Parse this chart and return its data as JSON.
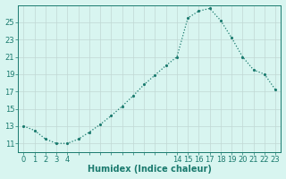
{
  "x": [
    0,
    1,
    2,
    3,
    4,
    5,
    6,
    7,
    8,
    9,
    10,
    11,
    12,
    13,
    14,
    15,
    16,
    17,
    18,
    19,
    20,
    21,
    22,
    23
  ],
  "y": [
    13.0,
    12.5,
    11.5,
    11.0,
    11.0,
    11.5,
    12.3,
    13.2,
    14.2,
    15.3,
    16.5,
    17.8,
    18.9,
    20.0,
    21.0,
    25.5,
    26.3,
    26.6,
    25.2,
    23.2,
    21.0,
    19.5,
    19.0,
    17.2
  ],
  "line_color": "#1a7a6e",
  "bg_color": "#d8f5f0",
  "grid_color": "#c0d8d4",
  "xlabel": "Humidex (Indice chaleur)",
  "ylim": [
    10,
    27
  ],
  "yticks": [
    11,
    13,
    15,
    17,
    19,
    21,
    23,
    25
  ],
  "xticks_show": [
    0,
    1,
    2,
    3,
    4,
    14,
    15,
    16,
    17,
    18,
    19,
    20,
    21,
    22,
    23
  ],
  "xlabel_fontsize": 7,
  "tick_fontsize": 6,
  "linewidth": 0.9,
  "markersize": 2.5
}
